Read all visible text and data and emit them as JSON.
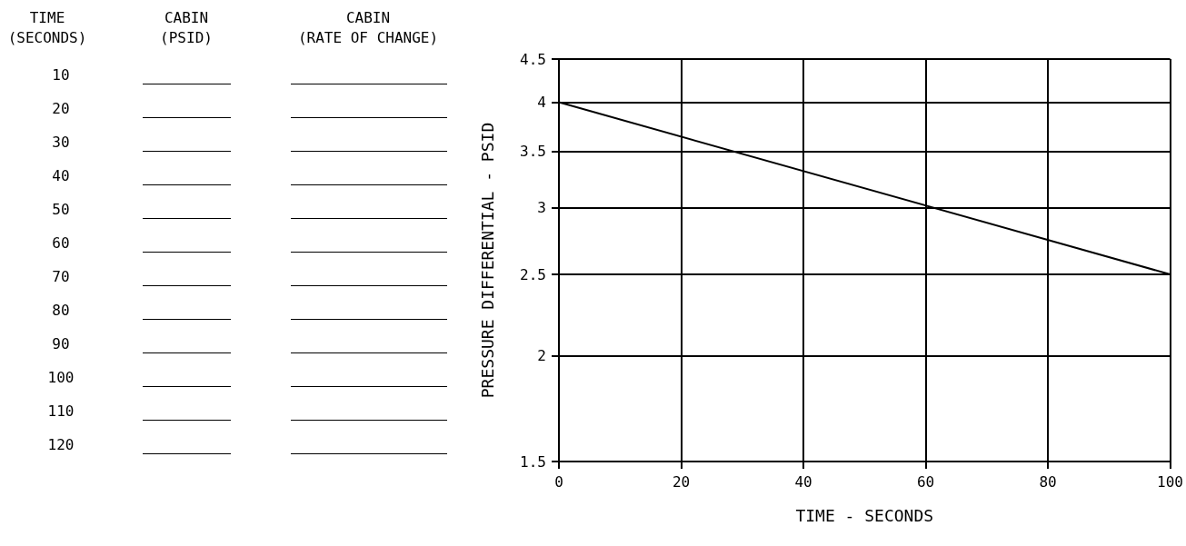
{
  "chart_data": {
    "type": "line",
    "xlabel": "TIME - SECONDS",
    "ylabel": "PRESSURE DIFFERENTIAL - PSID",
    "x": [
      0,
      100
    ],
    "values": [
      4,
      2.5
    ],
    "color": "#000000",
    "xlim": [
      0,
      100
    ],
    "xticks": [
      0,
      20,
      40,
      60,
      80,
      100
    ],
    "ylim": [
      1.5,
      4.5
    ],
    "yticks": [
      1.5,
      2,
      2.5,
      3,
      3.5,
      4,
      4.5
    ],
    "log": "y",
    "grid": true,
    "marker": "none",
    "line_style": "solid",
    "annotations": [
      "TIME",
      "(SECONDS)",
      "CABIN",
      "(PSID)",
      "CABIN",
      "(RATE OF CHANGE)",
      "10",
      "20",
      "30",
      "40",
      "50",
      "60",
      "70",
      "80",
      "90",
      "100",
      "110",
      "120"
    ]
  }
}
